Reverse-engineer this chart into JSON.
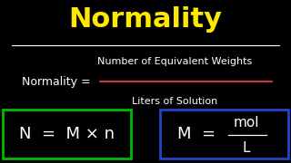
{
  "background_color": "#000000",
  "title": "Normality",
  "title_color": "#FFE800",
  "title_fontsize": 22,
  "separator_color": "#FFFFFF",
  "normality_label": "Normality = ",
  "numerator": "Number of Equivalent Weights",
  "denominator": "Liters of Solution",
  "text_color": "#FFFFFF",
  "red_line_color": "#FF4444",
  "box1_text": "N  =  M × n",
  "box1_color": "#00BB00",
  "box2_numerator": "mol",
  "box2_denominator": "L",
  "box2_prefix": "M  = ",
  "box2_color": "#2244CC",
  "formula_fontsize": 13,
  "label_fontsize": 9
}
